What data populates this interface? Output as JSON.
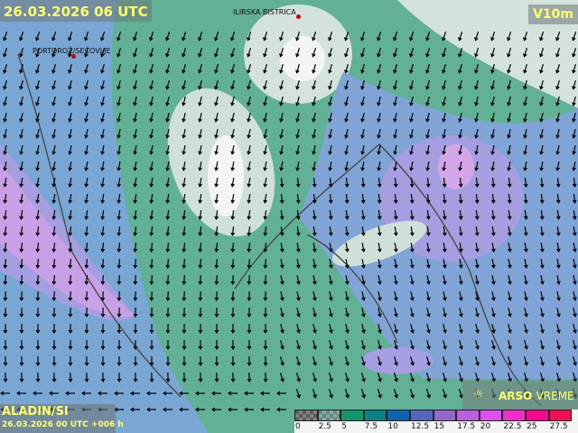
{
  "header": {
    "valid_time": "26.03.2026 06 UTC",
    "variable": "V10m"
  },
  "footer": {
    "model": "ALADIN/SI",
    "run": "26.03.2026 00 UTC +006 h"
  },
  "brand": {
    "name": "ARSO",
    "sub": "VREME",
    "icon": "weather-sun-icon"
  },
  "cities": [
    {
      "name": "ILIRSKA BISTRICA"
    },
    {
      "name": "PORTOROŽ/SEČOVLJE"
    }
  ],
  "legend": {
    "ticks": [
      "0",
      "2.5",
      "5",
      "7.5",
      "10",
      "12.5",
      "15",
      "17.5",
      "20",
      "22.5",
      "25",
      "27.5"
    ],
    "colors": [
      "#5a5a5a",
      "#5f8a80",
      "#13956b",
      "#0a8288",
      "#0d63ae",
      "#5266c0",
      "#9366cc",
      "#bb5ee0",
      "#e050f0",
      "#ee30c8",
      "#f80890",
      "#ee1050"
    ]
  }
}
